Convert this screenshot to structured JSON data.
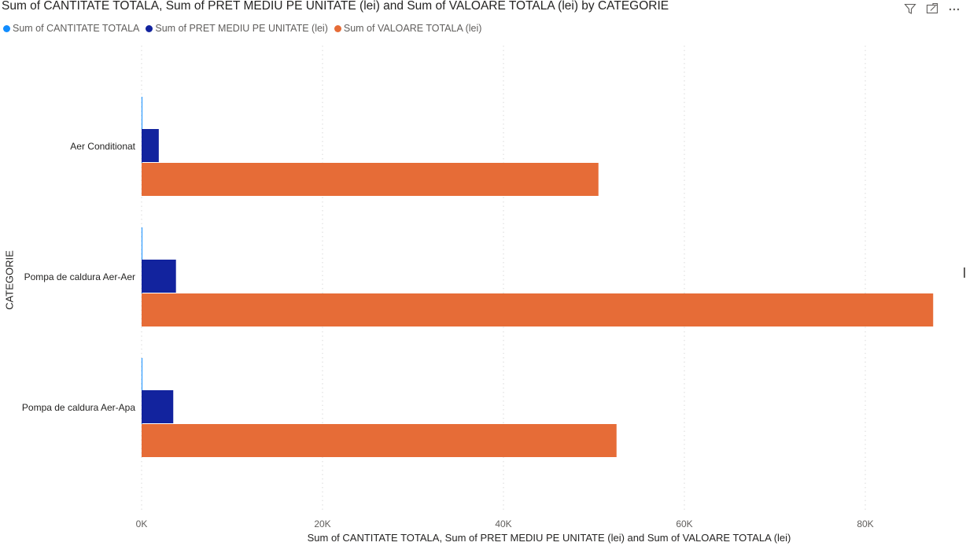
{
  "header": {
    "title": "Sum of CANTITATE TOTALA, Sum of PRET MEDIU PE UNITATE (lei) and Sum of VALOARE TOTALA (lei) by CATEGORIE",
    "icons": [
      "filter-icon",
      "focus-mode-icon",
      "more-options-icon"
    ]
  },
  "legend": [
    {
      "label": "Sum of CANTITATE TOTALA",
      "color": "#118DFF"
    },
    {
      "label": "Sum of PRET MEDIU PE UNITATE (lei)",
      "color": "#12239E"
    },
    {
      "label": "Sum of VALOARE TOTALA (lei)",
      "color": "#E66C37"
    }
  ],
  "chart_data": {
    "type": "bar",
    "orientation": "horizontal",
    "title": "Sum of CANTITATE TOTALA, Sum of PRET MEDIU PE UNITATE (lei) and Sum of VALOARE TOTALA (lei) by CATEGORIE",
    "xlabel": "Sum of CANTITATE TOTALA, Sum of PRET MEDIU PE UNITATE (lei) and Sum of VALOARE TOTALA (lei)",
    "ylabel": "CATEGORIE",
    "categories": [
      "Aer Conditionat",
      "Pompa de caldura Aer-Aer",
      "Pompa de caldura Aer-Apa"
    ],
    "series": [
      {
        "name": "Sum of CANTITATE TOTALA",
        "color": "#118DFF",
        "values": [
          10,
          12,
          12
        ]
      },
      {
        "name": "Sum of PRET MEDIU PE UNITATE (lei)",
        "color": "#12239E",
        "values": [
          1900,
          3800,
          3500
        ]
      },
      {
        "name": "Sum of VALOARE TOTALA (lei)",
        "color": "#E66C37",
        "values": [
          50500,
          87500,
          52500
        ]
      }
    ],
    "xlim": [
      0,
      87500
    ],
    "xticks": [
      0,
      20000,
      40000,
      60000,
      80000
    ],
    "xtick_labels": [
      "0K",
      "20K",
      "40K",
      "60K",
      "80K"
    ],
    "grid": true,
    "legend_position": "top-left"
  }
}
